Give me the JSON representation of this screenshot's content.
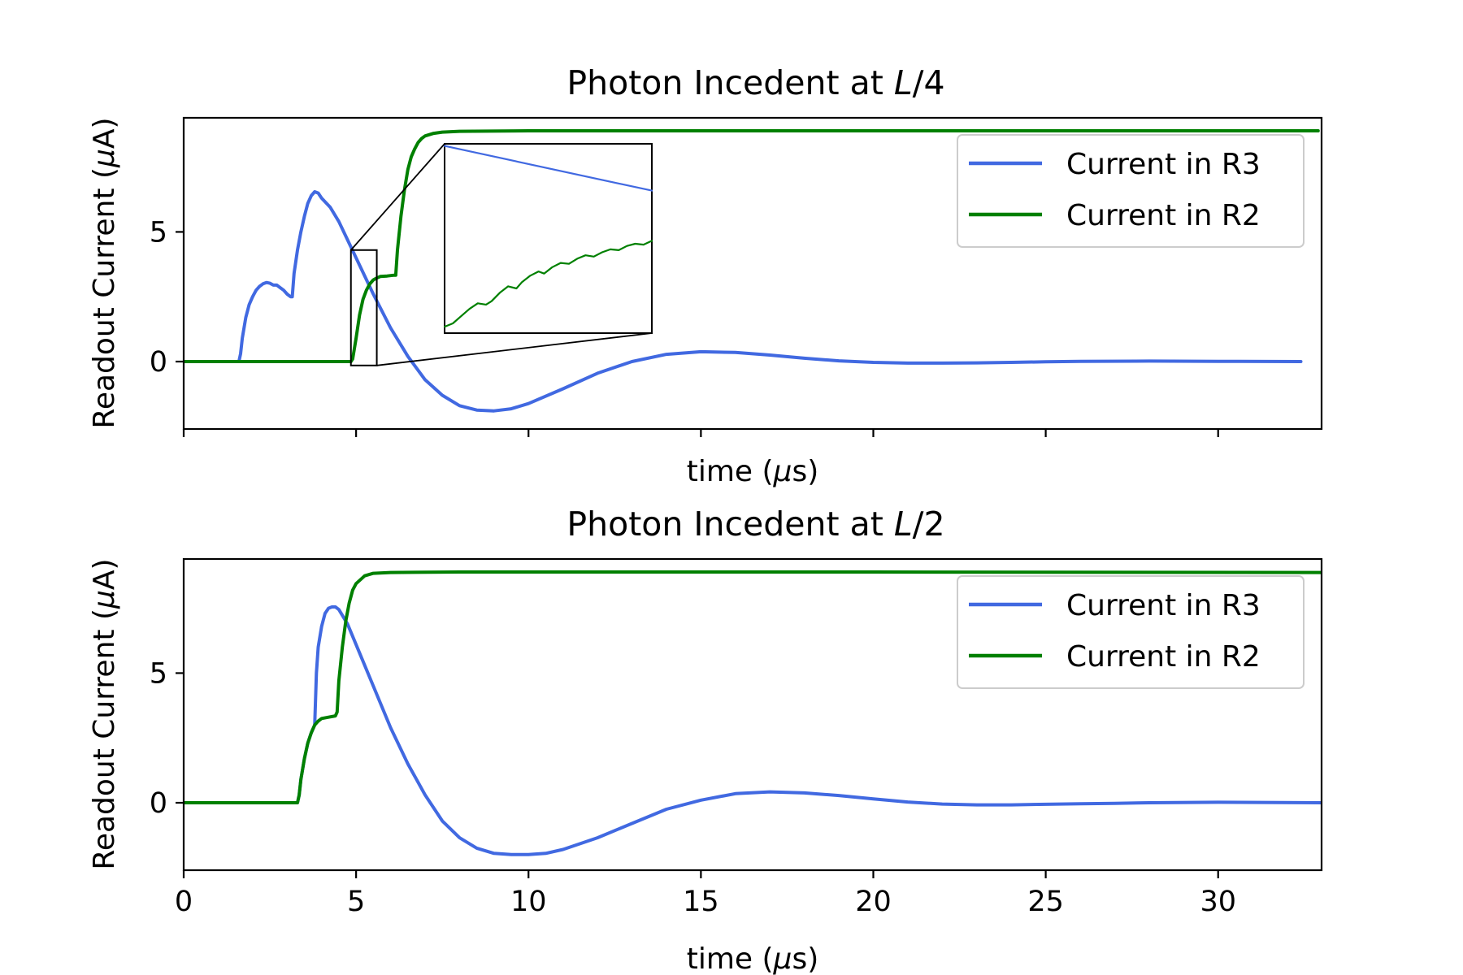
{
  "chart_data": [
    {
      "type": "line",
      "title_text": "Photon Incedent at ",
      "title_math": "L",
      "title_tail": "/4",
      "xlabel_text": "time (",
      "xlabel_math": "μ",
      "xlabel_tail": "s)",
      "ylabel_text": "Readout Current (",
      "ylabel_math": "μ",
      "ylabel_tail": "A)",
      "xlim": [
        0,
        33
      ],
      "ylim": [
        -2.6,
        9.4
      ],
      "xticks": [
        0,
        5,
        10,
        15,
        20,
        25,
        30
      ],
      "xtick_labels_visible": false,
      "yticks": [
        0,
        5
      ],
      "ytick_labels": [
        "0",
        "5"
      ],
      "legend_position": "upper-right",
      "series": [
        {
          "name": "Current in R3",
          "color": "#4169e1",
          "points": [
            [
              0,
              0
            ],
            [
              1.6,
              0
            ],
            [
              1.65,
              0.3
            ],
            [
              1.7,
              0.9
            ],
            [
              1.8,
              1.7
            ],
            [
              1.9,
              2.2
            ],
            [
              2.0,
              2.5
            ],
            [
              2.1,
              2.75
            ],
            [
              2.2,
              2.9
            ],
            [
              2.3,
              3.0
            ],
            [
              2.4,
              3.05
            ],
            [
              2.5,
              3.02
            ],
            [
              2.6,
              2.95
            ],
            [
              2.7,
              2.95
            ],
            [
              2.8,
              2.85
            ],
            [
              2.9,
              2.75
            ],
            [
              3.0,
              2.6
            ],
            [
              3.1,
              2.5
            ],
            [
              3.15,
              2.5
            ],
            [
              3.2,
              3.4
            ],
            [
              3.3,
              4.3
            ],
            [
              3.4,
              5.0
            ],
            [
              3.5,
              5.6
            ],
            [
              3.6,
              6.1
            ],
            [
              3.7,
              6.4
            ],
            [
              3.8,
              6.55
            ],
            [
              3.9,
              6.5
            ],
            [
              4.0,
              6.3
            ],
            [
              4.25,
              5.95
            ],
            [
              4.5,
              5.4
            ],
            [
              4.75,
              4.7
            ],
            [
              5.0,
              4.0
            ],
            [
              5.5,
              2.6
            ],
            [
              6.0,
              1.3
            ],
            [
              6.5,
              0.2
            ],
            [
              7.0,
              -0.7
            ],
            [
              7.5,
              -1.3
            ],
            [
              8.0,
              -1.7
            ],
            [
              8.5,
              -1.87
            ],
            [
              9.0,
              -1.9
            ],
            [
              9.5,
              -1.82
            ],
            [
              10.0,
              -1.62
            ],
            [
              11.0,
              -1.05
            ],
            [
              12.0,
              -0.45
            ],
            [
              13.0,
              0.0
            ],
            [
              14.0,
              0.28
            ],
            [
              15.0,
              0.38
            ],
            [
              16.0,
              0.35
            ],
            [
              17.0,
              0.25
            ],
            [
              18.0,
              0.13
            ],
            [
              19.0,
              0.03
            ],
            [
              20.0,
              -0.03
            ],
            [
              21.0,
              -0.06
            ],
            [
              22.0,
              -0.06
            ],
            [
              23.0,
              -0.05
            ],
            [
              24.0,
              -0.03
            ],
            [
              25.0,
              -0.01
            ],
            [
              26.0,
              0.01
            ],
            [
              28.0,
              0.02
            ],
            [
              30.0,
              0.01
            ],
            [
              32.4,
              0.0
            ]
          ]
        },
        {
          "name": "Current in R2",
          "color": "#008000",
          "points": [
            [
              0,
              0
            ],
            [
              4.85,
              0
            ],
            [
              4.9,
              0.1
            ],
            [
              5.0,
              0.9
            ],
            [
              5.1,
              1.8
            ],
            [
              5.2,
              2.4
            ],
            [
              5.3,
              2.75
            ],
            [
              5.4,
              3.0
            ],
            [
              5.5,
              3.15
            ],
            [
              5.6,
              3.22
            ],
            [
              5.7,
              3.28
            ],
            [
              5.9,
              3.3
            ],
            [
              6.1,
              3.33
            ],
            [
              6.15,
              3.33
            ],
            [
              6.2,
              4.3
            ],
            [
              6.3,
              5.6
            ],
            [
              6.4,
              6.6
            ],
            [
              6.5,
              7.4
            ],
            [
              6.6,
              7.9
            ],
            [
              6.7,
              8.2
            ],
            [
              6.8,
              8.45
            ],
            [
              6.9,
              8.6
            ],
            [
              7.0,
              8.7
            ],
            [
              7.25,
              8.8
            ],
            [
              7.5,
              8.85
            ],
            [
              8.0,
              8.88
            ],
            [
              10.0,
              8.9
            ],
            [
              20.0,
              8.9
            ],
            [
              32.9,
              8.9
            ]
          ]
        }
      ],
      "inset": {
        "zoom_x": [
          4.85,
          5.6
        ],
        "zoom_y": [
          -0.15,
          4.3
        ],
        "r3_points": [
          [
            4.85,
            4.25
          ],
          [
            5.6,
            3.2
          ]
        ],
        "r2_points": [
          [
            4.85,
            0.0
          ],
          [
            4.88,
            0.08
          ],
          [
            4.91,
            0.25
          ],
          [
            4.94,
            0.42
          ],
          [
            4.97,
            0.55
          ],
          [
            5.0,
            0.52
          ],
          [
            5.02,
            0.6
          ],
          [
            5.05,
            0.8
          ],
          [
            5.08,
            0.95
          ],
          [
            5.11,
            0.9
          ],
          [
            5.13,
            1.05
          ],
          [
            5.16,
            1.2
          ],
          [
            5.19,
            1.3
          ],
          [
            5.21,
            1.25
          ],
          [
            5.24,
            1.4
          ],
          [
            5.27,
            1.5
          ],
          [
            5.3,
            1.48
          ],
          [
            5.33,
            1.6
          ],
          [
            5.36,
            1.68
          ],
          [
            5.39,
            1.65
          ],
          [
            5.42,
            1.75
          ],
          [
            5.45,
            1.82
          ],
          [
            5.48,
            1.8
          ],
          [
            5.51,
            1.9
          ],
          [
            5.54,
            1.95
          ],
          [
            5.57,
            1.93
          ],
          [
            5.6,
            2.02
          ]
        ]
      }
    },
    {
      "type": "line",
      "title_text": "Photon Incedent at ",
      "title_math": "L",
      "title_tail": "/2",
      "xlabel_text": "time (",
      "xlabel_math": "μ",
      "xlabel_tail": "s)",
      "ylabel_text": "Readout Current (",
      "ylabel_math": "μ",
      "ylabel_tail": "A)",
      "xlim": [
        0,
        33
      ],
      "ylim": [
        -2.6,
        9.4
      ],
      "xticks": [
        0,
        5,
        10,
        15,
        20,
        25,
        30
      ],
      "xtick_labels_visible": true,
      "xtick_labels": [
        "0",
        "5",
        "10",
        "15",
        "20",
        "25",
        "30"
      ],
      "yticks": [
        0,
        5
      ],
      "ytick_labels": [
        "0",
        "5"
      ],
      "legend_position": "upper-right",
      "series": [
        {
          "name": "Current in R3",
          "color": "#4169e1",
          "points": [
            [
              0,
              0
            ],
            [
              3.3,
              0
            ],
            [
              3.35,
              0.3
            ],
            [
              3.4,
              0.9
            ],
            [
              3.5,
              1.7
            ],
            [
              3.6,
              2.3
            ],
            [
              3.7,
              2.7
            ],
            [
              3.8,
              3.0
            ],
            [
              3.85,
              5.0
            ],
            [
              3.9,
              6.0
            ],
            [
              4.0,
              6.8
            ],
            [
              4.1,
              7.3
            ],
            [
              4.2,
              7.5
            ],
            [
              4.3,
              7.55
            ],
            [
              4.4,
              7.55
            ],
            [
              4.5,
              7.45
            ],
            [
              4.75,
              6.9
            ],
            [
              5.0,
              6.1
            ],
            [
              5.5,
              4.5
            ],
            [
              6.0,
              2.9
            ],
            [
              6.5,
              1.5
            ],
            [
              7.0,
              0.3
            ],
            [
              7.5,
              -0.7
            ],
            [
              8.0,
              -1.35
            ],
            [
              8.5,
              -1.75
            ],
            [
              9.0,
              -1.95
            ],
            [
              9.5,
              -2.0
            ],
            [
              10.0,
              -2.0
            ],
            [
              10.5,
              -1.95
            ],
            [
              11.0,
              -1.8
            ],
            [
              12.0,
              -1.35
            ],
            [
              13.0,
              -0.8
            ],
            [
              14.0,
              -0.25
            ],
            [
              15.0,
              0.1
            ],
            [
              16.0,
              0.35
            ],
            [
              17.0,
              0.42
            ],
            [
              18.0,
              0.38
            ],
            [
              19.0,
              0.28
            ],
            [
              20.0,
              0.15
            ],
            [
              21.0,
              0.03
            ],
            [
              22.0,
              -0.05
            ],
            [
              23.0,
              -0.08
            ],
            [
              24.0,
              -0.08
            ],
            [
              25.0,
              -0.06
            ],
            [
              26.0,
              -0.04
            ],
            [
              27.0,
              -0.02
            ],
            [
              28.0,
              0.0
            ],
            [
              30.0,
              0.02
            ],
            [
              33.0,
              0.0
            ]
          ]
        },
        {
          "name": "Current in R2",
          "color": "#008000",
          "points": [
            [
              0,
              0
            ],
            [
              3.3,
              0
            ],
            [
              3.35,
              0.3
            ],
            [
              3.4,
              0.9
            ],
            [
              3.5,
              1.7
            ],
            [
              3.6,
              2.3
            ],
            [
              3.7,
              2.7
            ],
            [
              3.8,
              3.0
            ],
            [
              3.9,
              3.15
            ],
            [
              4.0,
              3.25
            ],
            [
              4.2,
              3.3
            ],
            [
              4.4,
              3.35
            ],
            [
              4.45,
              3.5
            ],
            [
              4.5,
              4.7
            ],
            [
              4.6,
              6.0
            ],
            [
              4.7,
              7.0
            ],
            [
              4.8,
              7.7
            ],
            [
              4.9,
              8.2
            ],
            [
              5.0,
              8.45
            ],
            [
              5.25,
              8.75
            ],
            [
              5.5,
              8.85
            ],
            [
              6.0,
              8.88
            ],
            [
              8.0,
              8.9
            ],
            [
              20.0,
              8.9
            ],
            [
              33.0,
              8.88
            ]
          ]
        }
      ]
    }
  ]
}
